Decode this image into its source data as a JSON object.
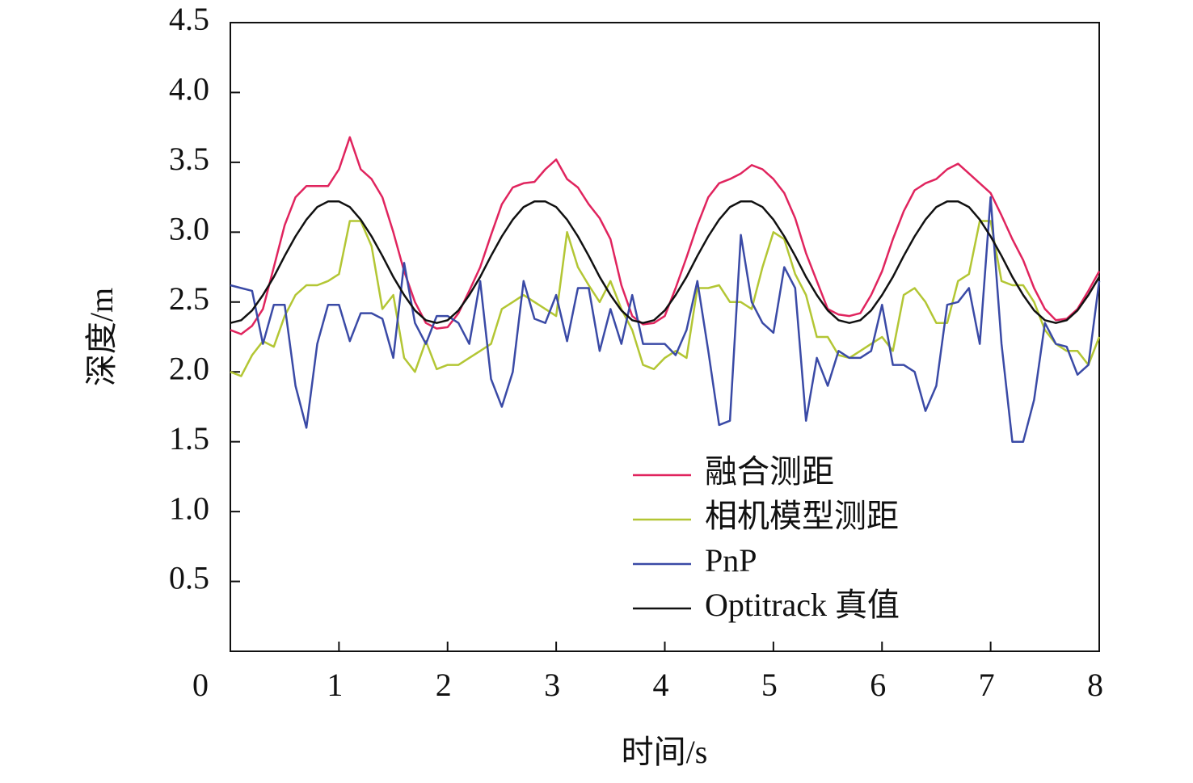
{
  "chart_data": {
    "type": "line",
    "xlabel": "时间/s",
    "ylabel": "深度/m",
    "x": [
      0,
      0.1,
      0.2,
      0.3,
      0.4,
      0.5,
      0.6,
      0.7,
      0.8,
      0.9,
      1,
      1.1,
      1.2,
      1.3,
      1.4,
      1.5,
      1.6,
      1.7,
      1.8,
      1.9,
      2,
      2.1,
      2.2,
      2.3,
      2.4,
      2.5,
      2.6,
      2.7,
      2.8,
      2.9,
      3,
      3.1,
      3.2,
      3.3,
      3.4,
      3.5,
      3.6,
      3.7,
      3.8,
      3.9,
      4,
      4.1,
      4.2,
      4.3,
      4.4,
      4.5,
      4.6,
      4.7,
      4.8,
      4.9,
      5,
      5.1,
      5.2,
      5.3,
      5.4,
      5.5,
      5.6,
      5.7,
      5.8,
      5.9,
      6,
      6.1,
      6.2,
      6.3,
      6.4,
      6.5,
      6.6,
      6.7,
      6.8,
      6.9,
      7,
      7.1,
      7.2,
      7.3,
      7.4,
      7.5,
      7.6,
      7.7,
      7.8,
      7.9,
      8
    ],
    "series": [
      {
        "name": "融合测距",
        "color": "#e0245e",
        "values": [
          2.3,
          2.27,
          2.33,
          2.45,
          2.75,
          3.05,
          3.25,
          3.33,
          3.33,
          3.33,
          3.45,
          3.68,
          3.45,
          3.38,
          3.25,
          3.0,
          2.72,
          2.5,
          2.35,
          2.31,
          2.32,
          2.42,
          2.58,
          2.75,
          2.98,
          3.2,
          3.32,
          3.35,
          3.36,
          3.45,
          3.52,
          3.38,
          3.32,
          3.2,
          3.1,
          2.95,
          2.62,
          2.4,
          2.34,
          2.35,
          2.4,
          2.6,
          2.82,
          3.05,
          3.25,
          3.35,
          3.38,
          3.42,
          3.48,
          3.45,
          3.38,
          3.28,
          3.1,
          2.85,
          2.65,
          2.45,
          2.41,
          2.4,
          2.42,
          2.55,
          2.72,
          2.95,
          3.15,
          3.3,
          3.35,
          3.38,
          3.45,
          3.49,
          3.42,
          3.35,
          3.28,
          3.12,
          2.95,
          2.8,
          2.6,
          2.45,
          2.37,
          2.38,
          2.45,
          2.58,
          2.72
        ]
      },
      {
        "name": "相机模型测距",
        "color": "#b3c634",
        "values": [
          2.0,
          1.97,
          2.12,
          2.22,
          2.18,
          2.4,
          2.55,
          2.62,
          2.62,
          2.65,
          2.7,
          3.08,
          3.08,
          2.9,
          2.45,
          2.55,
          2.1,
          2.0,
          2.22,
          2.02,
          2.05,
          2.05,
          2.1,
          2.15,
          2.2,
          2.45,
          2.5,
          2.55,
          2.5,
          2.45,
          2.4,
          3.0,
          2.75,
          2.62,
          2.5,
          2.65,
          2.45,
          2.3,
          2.05,
          2.02,
          2.1,
          2.15,
          2.1,
          2.6,
          2.6,
          2.62,
          2.5,
          2.5,
          2.45,
          2.75,
          3.0,
          2.95,
          2.7,
          2.55,
          2.25,
          2.25,
          2.12,
          2.1,
          2.15,
          2.2,
          2.25,
          2.15,
          2.55,
          2.6,
          2.5,
          2.35,
          2.35,
          2.65,
          2.7,
          3.08,
          3.08,
          2.65,
          2.62,
          2.62,
          2.5,
          2.3,
          2.2,
          2.15,
          2.15,
          2.05,
          2.25
        ]
      },
      {
        "name": "PnP",
        "color": "#3a4aa6",
        "values": [
          2.62,
          2.6,
          2.58,
          2.2,
          2.48,
          2.48,
          1.9,
          1.6,
          2.2,
          2.48,
          2.48,
          2.22,
          2.42,
          2.42,
          2.38,
          2.1,
          2.78,
          2.35,
          2.2,
          2.4,
          2.4,
          2.35,
          2.2,
          2.65,
          1.95,
          1.75,
          2.0,
          2.65,
          2.38,
          2.35,
          2.55,
          2.22,
          2.6,
          2.6,
          2.15,
          2.45,
          2.2,
          2.55,
          2.2,
          2.2,
          2.2,
          2.12,
          2.3,
          2.65,
          2.15,
          1.62,
          1.65,
          2.98,
          2.5,
          2.35,
          2.28,
          2.75,
          2.6,
          1.65,
          2.1,
          1.9,
          2.15,
          2.1,
          2.1,
          2.15,
          2.48,
          2.05,
          2.05,
          2.0,
          1.72,
          1.9,
          2.48,
          2.5,
          2.6,
          2.2,
          3.25,
          2.2,
          1.5,
          1.5,
          1.8,
          2.35,
          2.2,
          2.18,
          1.98,
          2.05,
          2.65
        ]
      },
      {
        "name": "Optitrack 真值",
        "color": "#111111",
        "values": [
          2.35,
          2.37,
          2.44,
          2.55,
          2.68,
          2.83,
          2.97,
          3.09,
          3.18,
          3.22,
          3.22,
          3.18,
          3.09,
          2.97,
          2.83,
          2.68,
          2.55,
          2.44,
          2.37,
          2.35,
          2.37,
          2.44,
          2.55,
          2.68,
          2.83,
          2.97,
          3.09,
          3.18,
          3.22,
          3.22,
          3.18,
          3.09,
          2.97,
          2.83,
          2.68,
          2.55,
          2.44,
          2.37,
          2.35,
          2.37,
          2.44,
          2.55,
          2.68,
          2.83,
          2.97,
          3.09,
          3.18,
          3.22,
          3.22,
          3.18,
          3.09,
          2.97,
          2.83,
          2.68,
          2.55,
          2.44,
          2.37,
          2.35,
          2.37,
          2.44,
          2.55,
          2.68,
          2.83,
          2.97,
          3.09,
          3.18,
          3.22,
          3.22,
          3.18,
          3.09,
          2.97,
          2.83,
          2.68,
          2.55,
          2.44,
          2.37,
          2.35,
          2.37,
          2.44,
          2.55,
          2.68
        ]
      }
    ],
    "xlim": [
      0,
      8
    ],
    "xticks": [
      0,
      1,
      2,
      3,
      4,
      5,
      6,
      7,
      8
    ],
    "ylim": [
      0,
      4.5
    ],
    "yticks": [
      0.5,
      {
        "value": 1,
        "label": "1.0"
      },
      1.5,
      {
        "value": 2,
        "label": "2.0"
      },
      2.5,
      {
        "value": 3,
        "label": "3.0"
      },
      3.5,
      {
        "value": 4,
        "label": "4.0"
      },
      4.5
    ],
    "legend": "lower-right"
  }
}
